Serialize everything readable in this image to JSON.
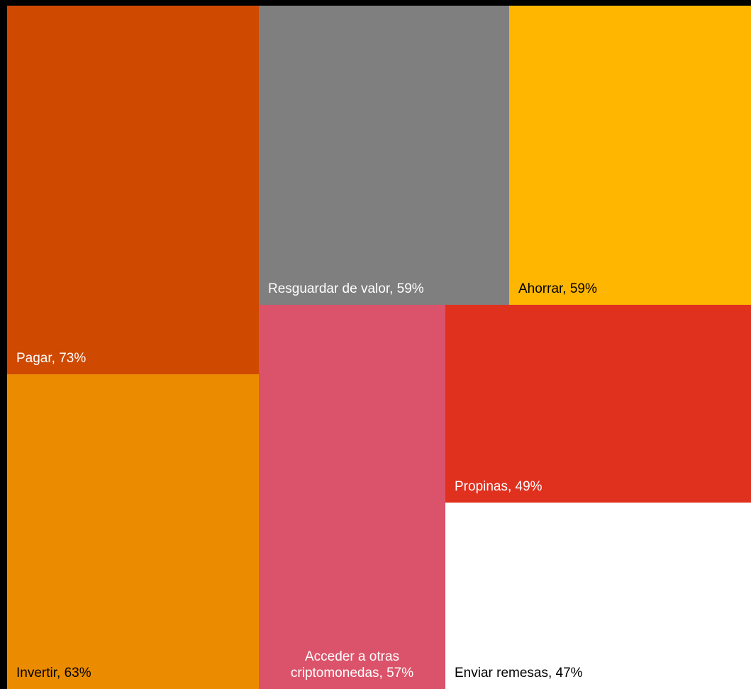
{
  "chart_data": {
    "type": "treemap",
    "background": "#000000",
    "items": [
      {
        "label": "Pagar, 73%",
        "value": 73,
        "color": "#cf4900",
        "text_color": "#ffffff"
      },
      {
        "label": "Invertir, 63%",
        "value": 63,
        "color": "#eb8c00",
        "text_color": "#000000"
      },
      {
        "label": "Resguardar de valor, 59%",
        "value": 59,
        "color": "#7f7f7f",
        "text_color": "#ffffff"
      },
      {
        "label": "Ahorrar, 59%",
        "value": 59,
        "color": "#ffb600",
        "text_color": "#000000"
      },
      {
        "label": "Acceder a otras criptomonedas, 57%",
        "value": 57,
        "color": "#db536a",
        "text_color": "#ffffff"
      },
      {
        "label": "Propinas, 49%",
        "value": 49,
        "color": "#e0301e",
        "text_color": "#ffffff"
      },
      {
        "label": "Enviar remesas, 47%",
        "value": 47,
        "color": "#ffffff",
        "text_color": "#000000"
      }
    ]
  }
}
